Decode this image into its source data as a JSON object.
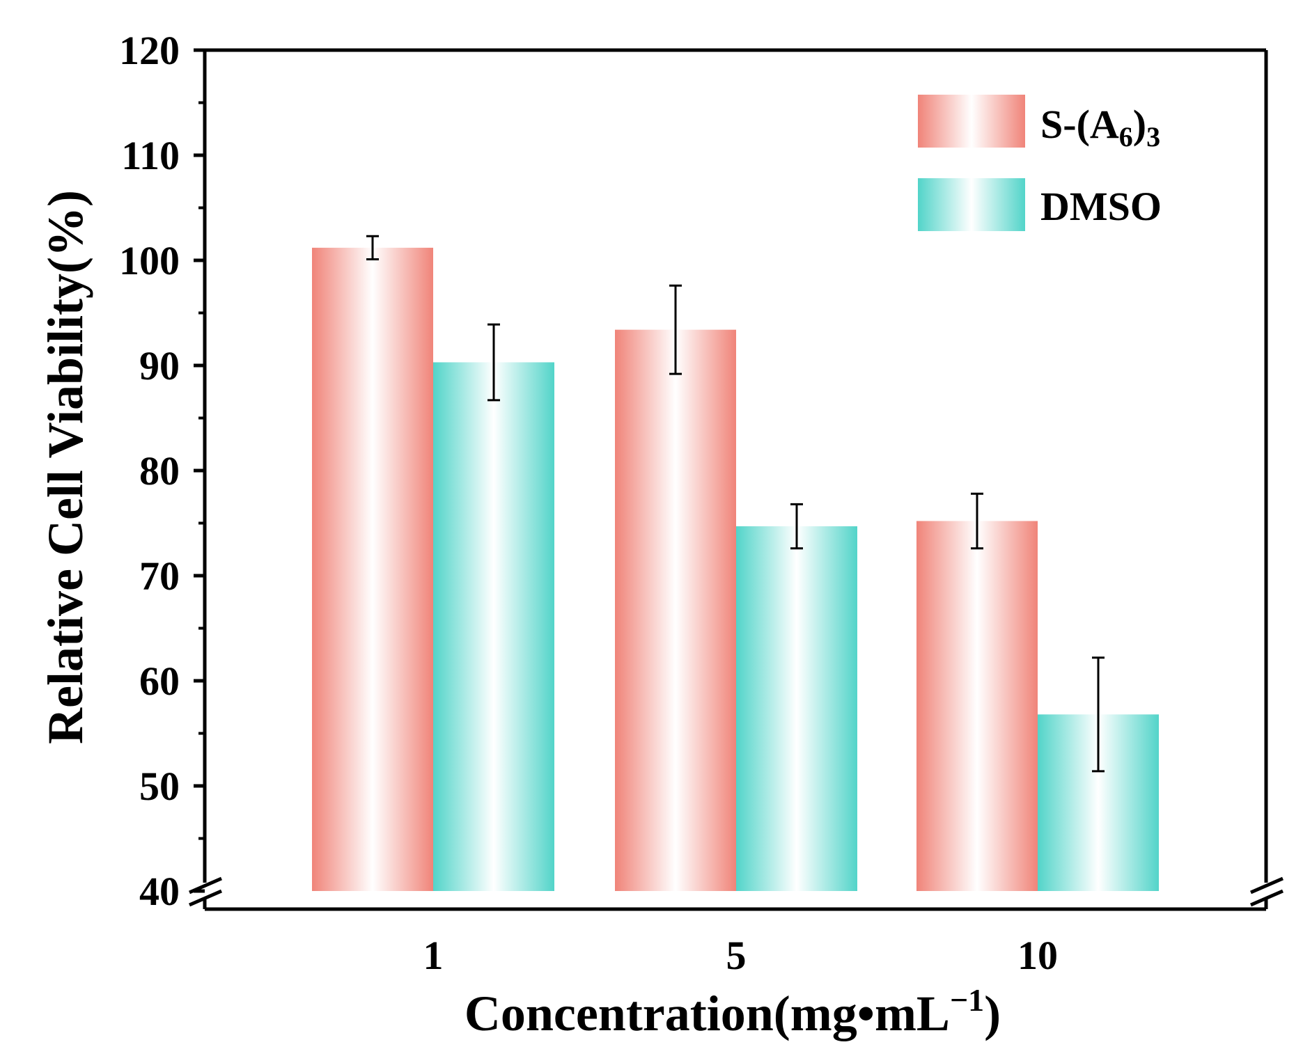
{
  "chart_data": {
    "type": "bar",
    "title": "",
    "xlabel": "Concentration(mg•mL",
    "xlabel_sup": "−1",
    "xlabel_close": ")",
    "ylabel": "Relative Cell Viability(%)",
    "categories": [
      "1",
      "5",
      "10"
    ],
    "ylim": [
      40,
      120
    ],
    "yticks": [
      40,
      50,
      60,
      70,
      80,
      90,
      100,
      110,
      120
    ],
    "axis_break": true,
    "grid": false,
    "legend_position": "top-right",
    "series": [
      {
        "name": "S-(A6)3",
        "label_main": "S-(A",
        "label_sub": "6",
        "label_close": ")",
        "label_sub2": "3",
        "color": "#f08a80",
        "values": [
          101.2,
          93.4,
          75.2
        ],
        "errors": [
          1.1,
          4.2,
          2.6
        ]
      },
      {
        "name": "DMSO",
        "label_main": "DMSO",
        "color": "#5fd6cc",
        "values": [
          90.3,
          74.7,
          56.8
        ],
        "errors": [
          3.6,
          2.1,
          5.4
        ]
      }
    ]
  }
}
